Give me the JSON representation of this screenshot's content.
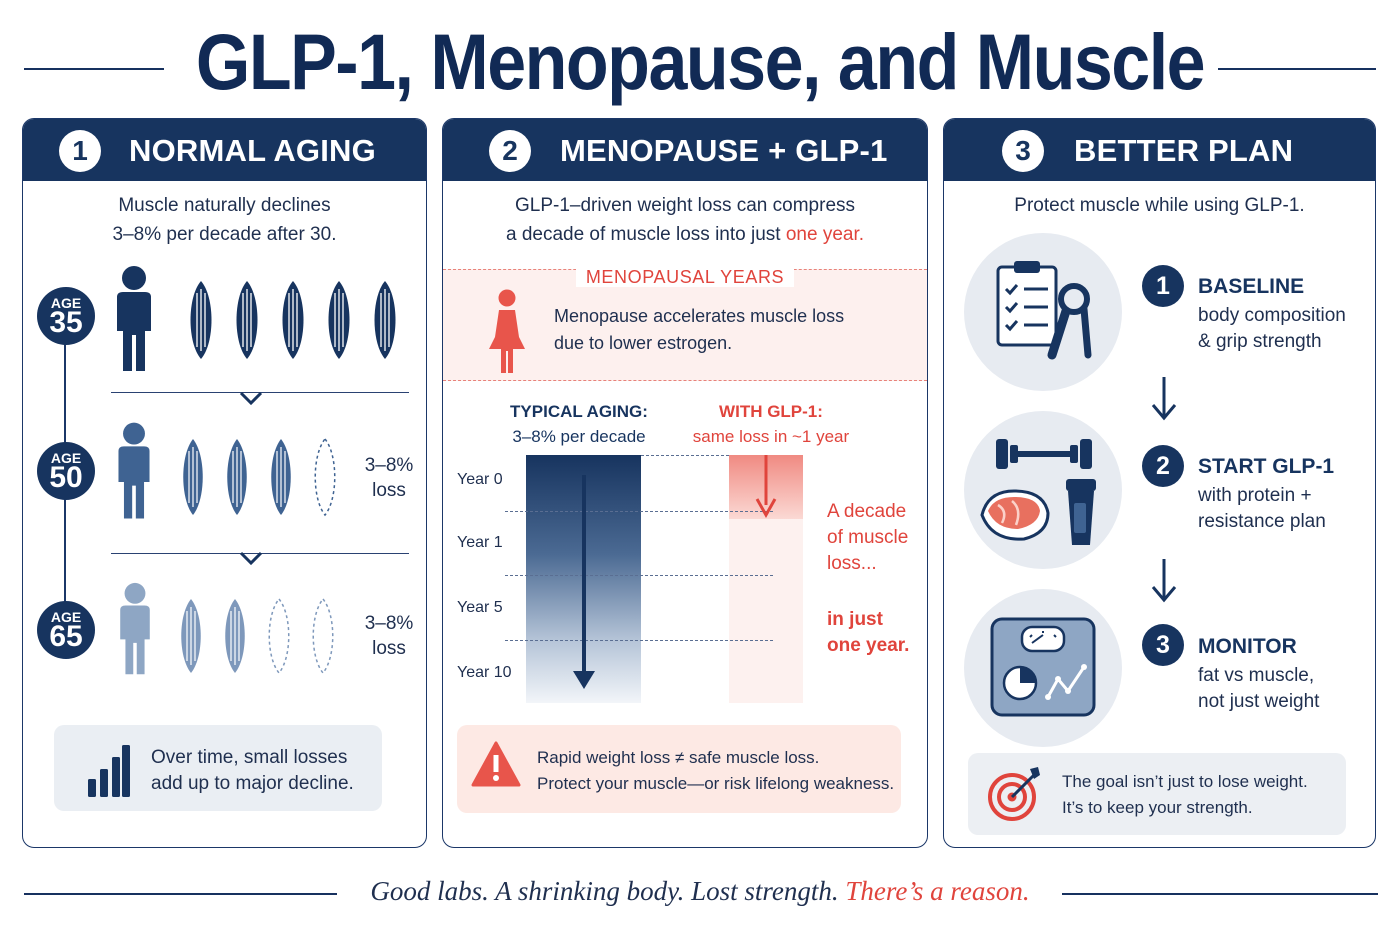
{
  "title": "GLP-1, Menopause, and Muscle",
  "panels": {
    "p1": {
      "num": "1",
      "title": "NORMAL AGING",
      "intro_line1": "Muscle naturally declines",
      "intro_line2": "3–8% per decade after 30.",
      "ages": [
        {
          "label": "AGE",
          "value": "35"
        },
        {
          "label": "AGE",
          "value": "50",
          "loss1": "3–8%",
          "loss2": "loss"
        },
        {
          "label": "AGE",
          "value": "65",
          "loss1": "3–8%",
          "loss2": "loss"
        }
      ],
      "callout_line1": "Over time, small losses",
      "callout_line2": "add up to major decline.",
      "icons": {
        "person": "person-icon",
        "muscle": "muscle-fiber-icon",
        "bars": "bar-chart-icon"
      },
      "colors": {
        "age35": "#17345f",
        "age50": "#3f6392",
        "age65": "#8ea6c4"
      }
    },
    "p2": {
      "num": "2",
      "title": "MENOPAUSE + GLP-1",
      "intro_line1": "GLP-1–driven weight loss can compress",
      "intro_line2_pre": "a decade of muscle loss into just ",
      "intro_line2_em": "one year.",
      "meno_title": "MENOPAUSAL YEARS",
      "meno_line1": "Menopause accelerates muscle loss",
      "meno_line2": "due to lower estrogen.",
      "col1_head": "TYPICAL AGING:",
      "col1_sub": "3–8% per decade",
      "col2_head": "WITH GLP-1:",
      "col2_sub": "same loss in ~1 year",
      "years": [
        "Year 0",
        "Year 1",
        "Year 5",
        "Year 10"
      ],
      "side1_l1": "A decade",
      "side1_l2": "of muscle",
      "side1_l3": "loss...",
      "side2_l1": "in just",
      "side2_l2": "one year.",
      "callout_line1": "Rapid weight loss ≠ safe muscle loss.",
      "callout_line2": "Protect your muscle—or risk lifelong weakness."
    },
    "p3": {
      "num": "3",
      "title": "BETTER PLAN",
      "intro": "Protect muscle while using GLP-1.",
      "steps": [
        {
          "num": "1",
          "title": "BASELINE",
          "l1": "body composition",
          "l2": "& grip strength"
        },
        {
          "num": "2",
          "title": "START GLP-1",
          "l1": "with protein +",
          "l2": "resistance plan"
        },
        {
          "num": "3",
          "title": "MONITOR",
          "l1": "fat vs muscle,",
          "l2": "not just weight"
        }
      ],
      "callout_line1": "The goal isn’t just to lose weight.",
      "callout_line2": "It’s to keep your strength."
    }
  },
  "footer": {
    "part1": "Good labs. A shrinking body. Lost strength. ",
    "part2": "There’s a reason."
  },
  "colors": {
    "navy": "#17345f",
    "red": "#e0443c",
    "light_red": "#fdf0ee"
  }
}
